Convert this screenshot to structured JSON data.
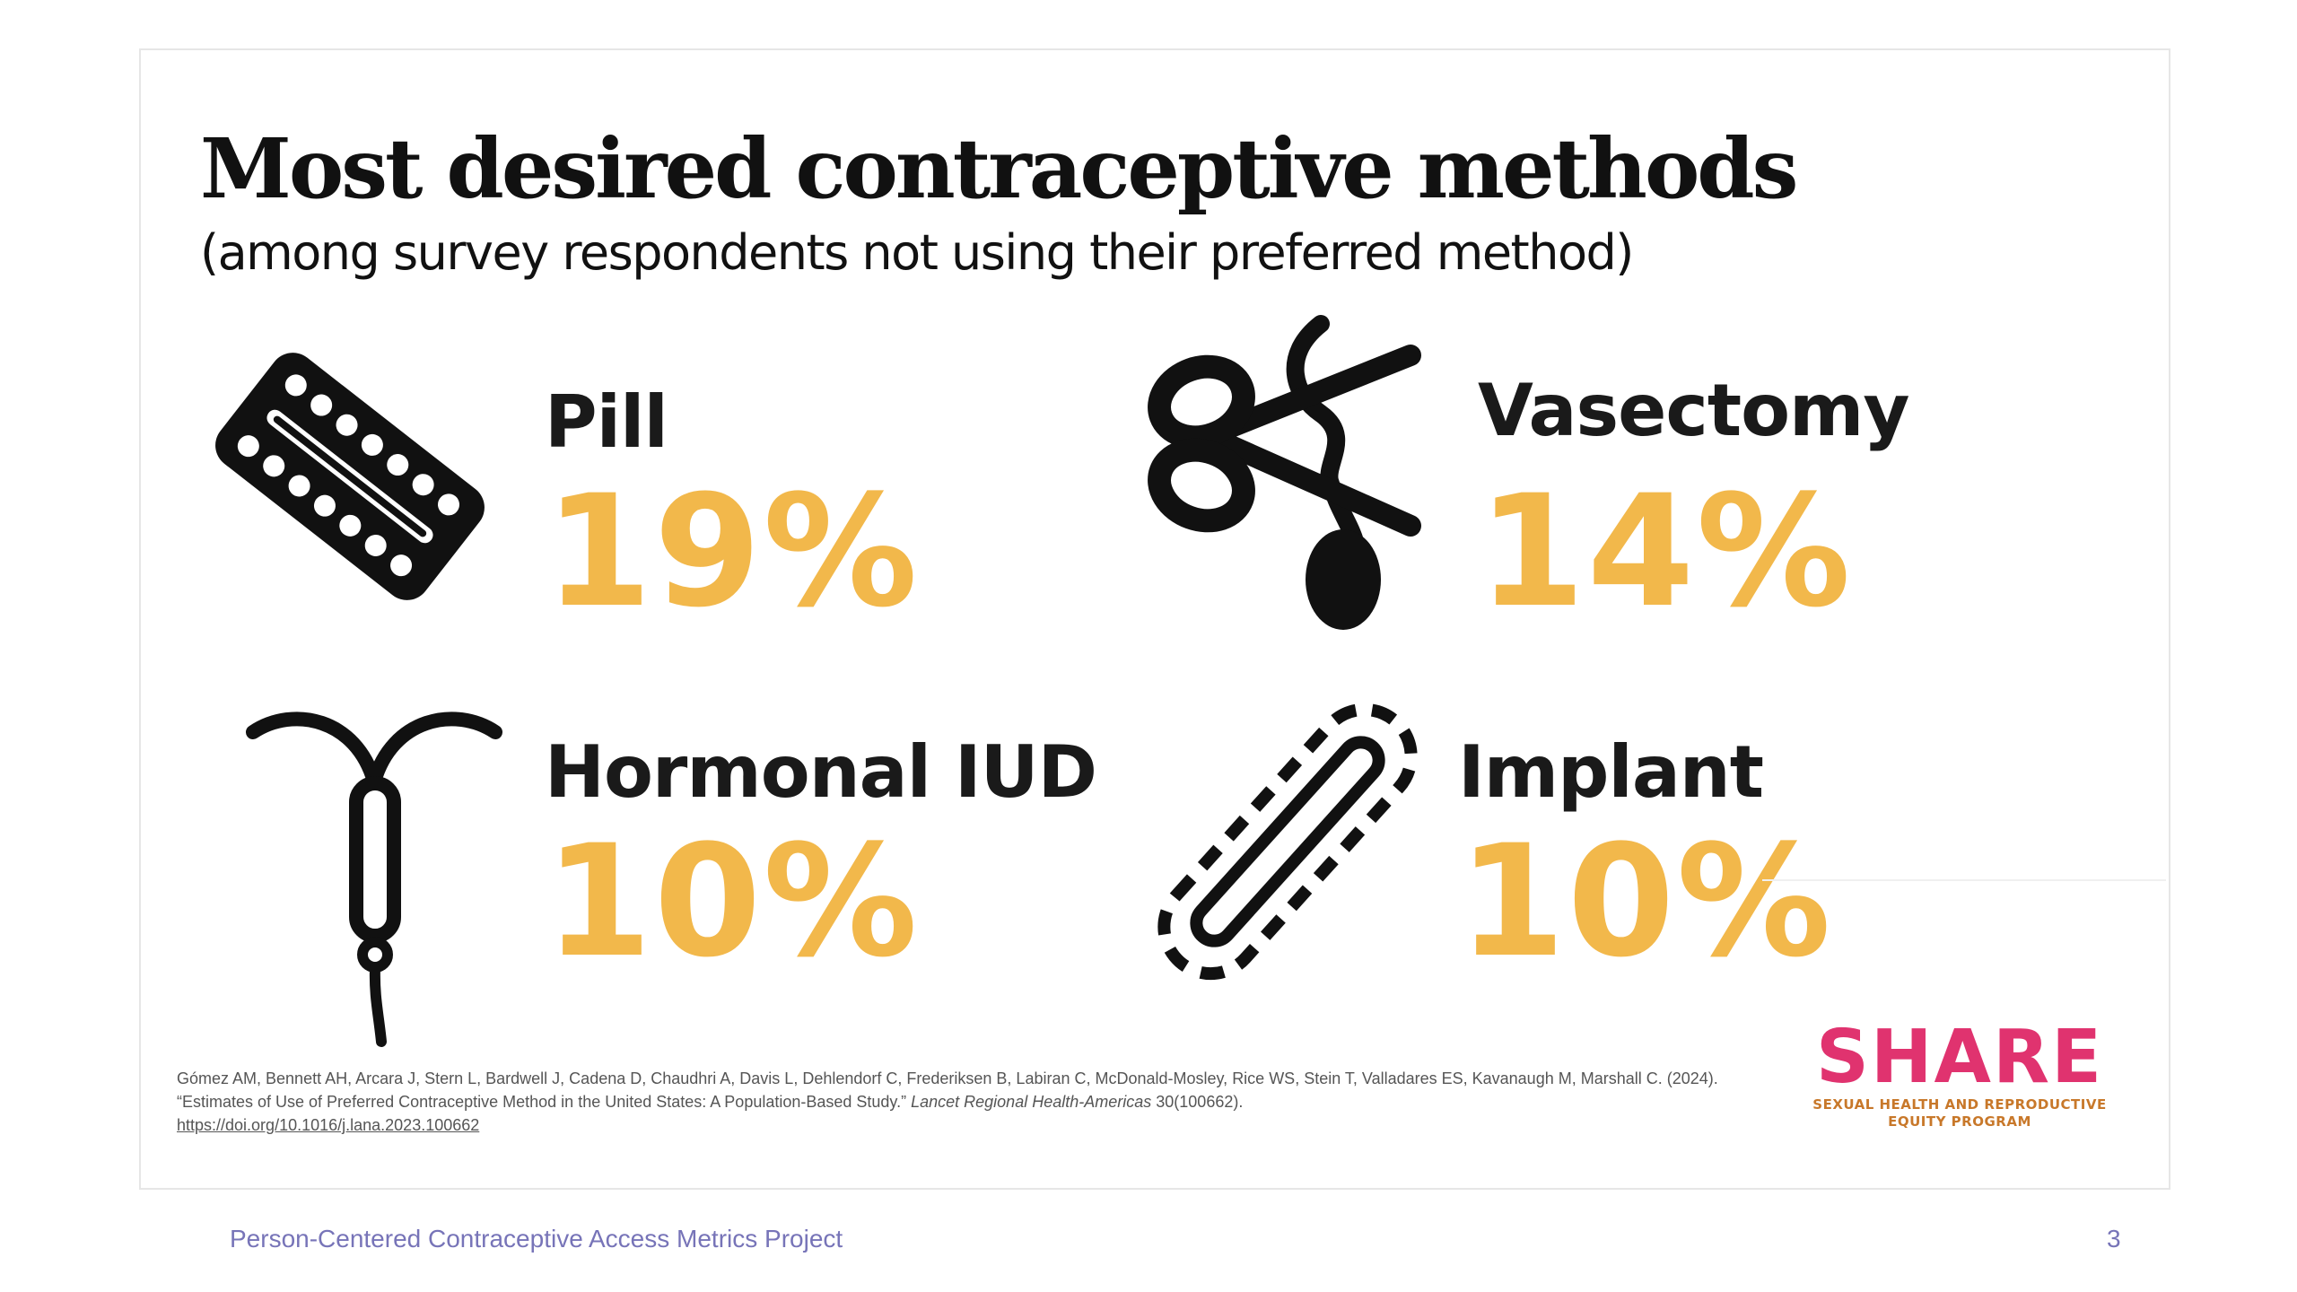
{
  "slide": {
    "title": "Most desired contraceptive methods",
    "subtitle": "(among survey respondents not using their preferred method)"
  },
  "methods": [
    {
      "label": "Pill",
      "value": "19%",
      "icon": "pill-pack-icon"
    },
    {
      "label": "Vasectomy",
      "value": "14%",
      "icon": "vasectomy-scissors-icon"
    },
    {
      "label": "Hormonal IUD",
      "value": "10%",
      "icon": "iud-icon"
    },
    {
      "label": "Implant",
      "value": "10%",
      "icon": "implant-icon"
    }
  ],
  "citation": {
    "authors": "Gómez AM, Bennett AH, Arcara J, Stern L, Bardwell J, Cadena D, Chaudhri A, Davis L, Dehlendorf C, Frederiksen B,  Labiran C, McDonald-Mosley, Rice WS, Stein T, Valladares ES, Kavanaugh M, Marshall C. (2024). “Estimates of Use of Preferred Contraceptive Method in the United States: A Population-Based Study.”",
    "journal": "Lancet Regional Health-Americas",
    "volume": "30(100662).",
    "doi": "https://doi.org/10.1016/j.lana.2023.100662"
  },
  "logo": {
    "word": "SHARE",
    "tagline_line1": "SEXUAL HEALTH AND REPRODUCTIVE",
    "tagline_line2": "EQUITY PROGRAM"
  },
  "footer": {
    "project": "Person-Centered Contraceptive Access Metrics Project",
    "page_number": "3"
  },
  "colors": {
    "accent": "#f2b84b",
    "logo_pink": "#e0336f",
    "logo_tagline": "#c8782a",
    "footer_text": "#7774b8",
    "text_dark": "#1a1a1a"
  }
}
